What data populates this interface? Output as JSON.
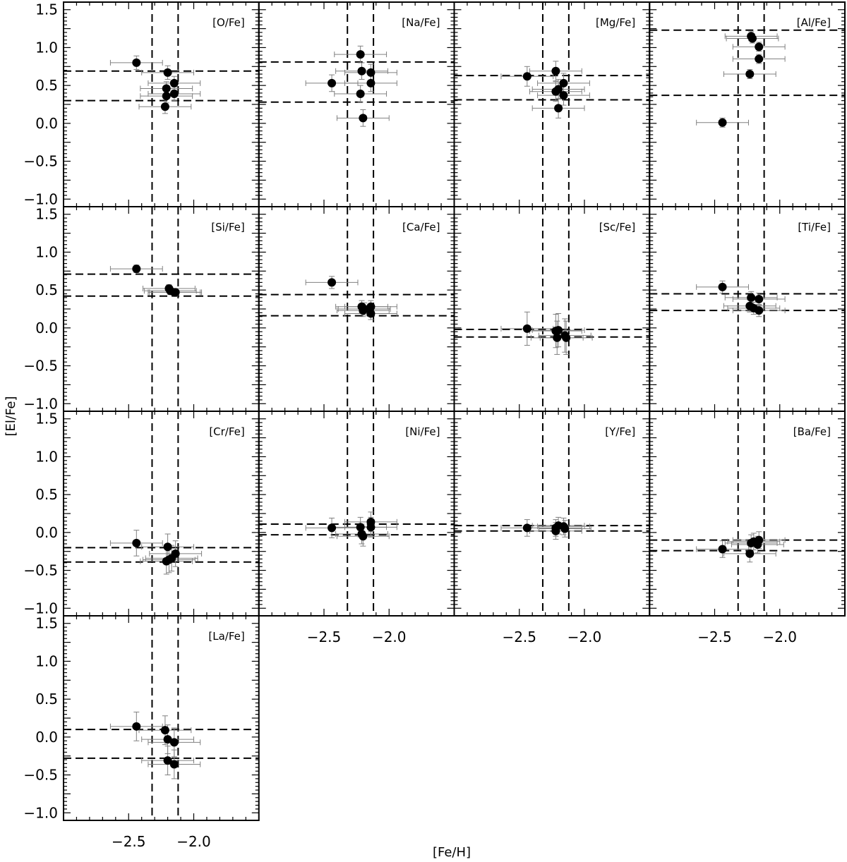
{
  "figure": {
    "xlabel": "[Fe/H]",
    "ylabel": "[El/Fe]"
  },
  "style": {
    "axis_color": "#000000",
    "marker_color": "#000000",
    "errorbar_color": "#808080",
    "reference_line_color": "#000000"
  },
  "chart_data": {
    "type": "scatter",
    "xlim": [
      -3.0,
      -1.5
    ],
    "ylim": [
      -1.1,
      1.6
    ],
    "x_ticks": [
      -2.5,
      -2.0
    ],
    "x_tick_labels": [
      "−2.5",
      "−2.0"
    ],
    "y_ticks": [
      -1.0,
      -0.5,
      0.0,
      0.5,
      1.0,
      1.5
    ],
    "y_tick_labels": [
      "−1.0",
      "−0.5",
      "0.0",
      "0.5",
      "1.0",
      "1.5"
    ],
    "grid": false,
    "legend": false,
    "vertical_reference_lines_feh": [
      -2.32,
      -2.12
    ],
    "x_error_feh": 0.2,
    "panels": [
      {
        "label": "[O/Fe]",
        "hlines": [
          0.69,
          0.3
        ],
        "yerr": 0.09,
        "points": [
          [
            -2.44,
            0.8
          ],
          [
            -2.2,
            0.67
          ],
          [
            -2.21,
            0.46
          ],
          [
            -2.15,
            0.53
          ],
          [
            -2.21,
            0.36
          ],
          [
            -2.15,
            0.39
          ],
          [
            -2.22,
            0.22
          ]
        ]
      },
      {
        "label": "[Na/Fe]",
        "hlines": [
          0.81,
          0.28
        ],
        "yerr": 0.11,
        "points": [
          [
            -2.44,
            0.53
          ],
          [
            -2.22,
            0.91
          ],
          [
            -2.21,
            0.69
          ],
          [
            -2.14,
            0.67
          ],
          [
            -2.14,
            0.53
          ],
          [
            -2.22,
            0.39
          ],
          [
            -2.2,
            0.07
          ]
        ]
      },
      {
        "label": "[Mg/Fe]",
        "hlines": [
          0.63,
          0.31
        ],
        "yerr": 0.13,
        "points": [
          [
            -2.44,
            0.62
          ],
          [
            -2.22,
            0.69
          ],
          [
            -2.16,
            0.53
          ],
          [
            -2.2,
            0.45
          ],
          [
            -2.22,
            0.42
          ],
          [
            -2.16,
            0.37
          ],
          [
            -2.2,
            0.2
          ]
        ]
      },
      {
        "label": "[Al/Fe]",
        "hlines": [
          1.23,
          0.37
        ],
        "yerr": 0.06,
        "points": [
          [
            -2.44,
            0.01
          ],
          [
            -2.22,
            1.15
          ],
          [
            -2.21,
            1.12
          ],
          [
            -2.16,
            1.01
          ],
          [
            -2.16,
            0.85
          ],
          [
            -2.23,
            0.65
          ]
        ]
      },
      {
        "label": "[Si/Fe]",
        "hlines": [
          0.71,
          0.42
        ],
        "yerr": 0.05,
        "points": [
          [
            -2.44,
            0.78
          ],
          [
            -2.19,
            0.52
          ],
          [
            -2.18,
            0.49
          ],
          [
            -2.15,
            0.47
          ],
          [
            -2.14,
            0.47
          ]
        ]
      },
      {
        "label": "[Ca/Fe]",
        "hlines": [
          0.44,
          0.16
        ],
        "yerr": 0.08,
        "points": [
          [
            -2.44,
            0.6
          ],
          [
            -2.21,
            0.28
          ],
          [
            -2.19,
            0.25
          ],
          [
            -2.14,
            0.28
          ],
          [
            -2.2,
            0.23
          ],
          [
            -2.14,
            0.19
          ]
        ]
      },
      {
        "label": "[Sc/Fe]",
        "hlines": [
          -0.02,
          -0.12
        ],
        "yerr": 0.22,
        "points": [
          [
            -2.44,
            -0.01
          ],
          [
            -2.22,
            -0.04
          ],
          [
            -2.2,
            -0.03
          ],
          [
            -2.21,
            -0.13
          ],
          [
            -2.15,
            -0.1
          ],
          [
            -2.14,
            -0.13
          ]
        ]
      },
      {
        "label": "[Ti/Fe]",
        "hlines": [
          0.45,
          0.23
        ],
        "yerr": 0.08,
        "points": [
          [
            -2.44,
            0.54
          ],
          [
            -2.22,
            0.4
          ],
          [
            -2.16,
            0.38
          ],
          [
            -2.23,
            0.29
          ],
          [
            -2.2,
            0.26
          ],
          [
            -2.16,
            0.23
          ]
        ]
      },
      {
        "label": "[Cr/Fe]",
        "hlines": [
          -0.2,
          -0.39
        ],
        "yerr": 0.17,
        "points": [
          [
            -2.44,
            -0.14
          ],
          [
            -2.2,
            -0.19
          ],
          [
            -2.14,
            -0.28
          ],
          [
            -2.17,
            -0.34
          ],
          [
            -2.19,
            -0.36
          ],
          [
            -2.21,
            -0.38
          ]
        ]
      },
      {
        "label": "[Ni/Fe]",
        "hlines": [
          0.11,
          -0.03
        ],
        "yerr": 0.13,
        "points": [
          [
            -2.44,
            0.06
          ],
          [
            -2.14,
            0.14
          ],
          [
            -2.22,
            0.07
          ],
          [
            -2.14,
            0.07
          ],
          [
            -2.21,
            -0.02
          ],
          [
            -2.2,
            -0.05
          ]
        ]
      },
      {
        "label": "[Y/Fe]",
        "hlines": [
          0.09,
          0.02
        ],
        "yerr": 0.11,
        "points": [
          [
            -2.44,
            0.06
          ],
          [
            -2.2,
            0.09
          ],
          [
            -2.16,
            0.08
          ],
          [
            -2.22,
            0.06
          ],
          [
            -2.15,
            0.05
          ],
          [
            -2.22,
            0.02
          ]
        ]
      },
      {
        "label": "[Ba/Fe]",
        "hlines": [
          -0.1,
          -0.24
        ],
        "yerr": 0.11,
        "points": [
          [
            -2.44,
            -0.22
          ],
          [
            -2.16,
            -0.1
          ],
          [
            -2.2,
            -0.12
          ],
          [
            -2.22,
            -0.14
          ],
          [
            -2.17,
            -0.16
          ],
          [
            -2.23,
            -0.28
          ]
        ]
      },
      {
        "label": "[La/Fe]",
        "hlines": [
          0.1,
          -0.28
        ],
        "yerr": 0.19,
        "points": [
          [
            -2.44,
            0.14
          ],
          [
            -2.22,
            0.09
          ],
          [
            -2.2,
            -0.03
          ],
          [
            -2.15,
            -0.07
          ],
          [
            -2.2,
            -0.31
          ],
          [
            -2.15,
            -0.36
          ]
        ]
      }
    ]
  }
}
